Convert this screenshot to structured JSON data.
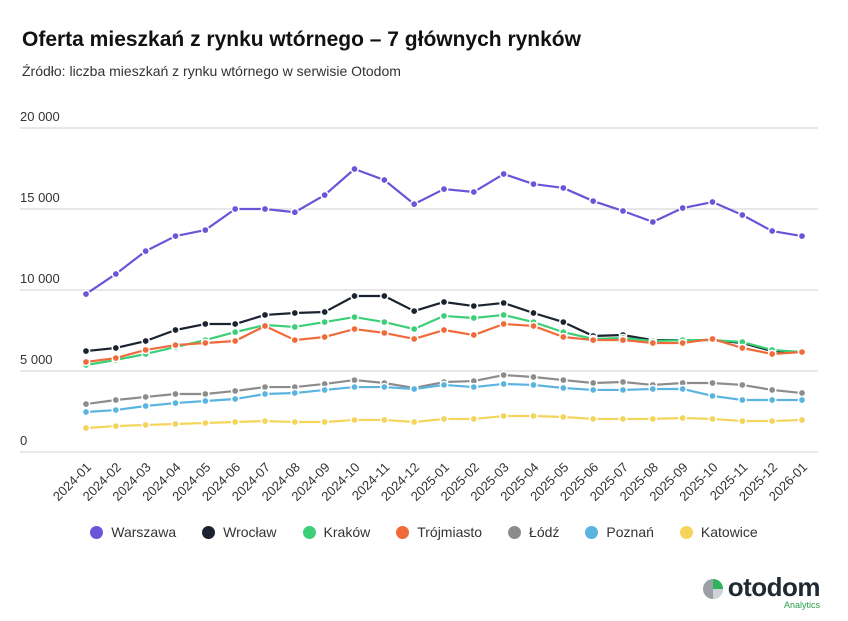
{
  "chart_data": {
    "type": "line",
    "title": "Oferta mieszkań z rynku wtórnego – 7 głównych rynków",
    "subtitle": "Źródło: liczba mieszkań z rynku wtórnego w serwisie Otodom",
    "xlabel": "",
    "ylabel": "",
    "ylim": [
      0,
      20000
    ],
    "yticks": [
      0,
      5000,
      10000,
      15000,
      20000
    ],
    "ytick_labels": [
      "0",
      "5 000",
      "10 000",
      "15 000",
      "20 000"
    ],
    "grid": true,
    "legend_position": "bottom",
    "categories": [
      "2024-01",
      "2024-02",
      "2024-03",
      "2024-04",
      "2024-05",
      "2024-06",
      "2024-07",
      "2024-08",
      "2024-09",
      "2024-10",
      "2024-11",
      "2024-12",
      "2025-01",
      "2025-02",
      "2025-03",
      "2025-04",
      "2025-05",
      "2025-06",
      "2025-07",
      "2025-08",
      "2025-09",
      "2025-10",
      "2025-11",
      "2025-12",
      "2026-01"
    ],
    "series": [
      {
        "name": "Warszawa",
        "color": "#6a55d8",
        "values": [
          9750,
          10990,
          12400,
          13330,
          13700,
          15000,
          15000,
          14800,
          15860,
          17470,
          16790,
          15300,
          16230,
          16050,
          17160,
          16540,
          16300,
          15490,
          14880,
          14200,
          15060,
          15430,
          14630,
          13640,
          13330
        ]
      },
      {
        "name": "Wrocław",
        "color": "#1b2330",
        "values": [
          6230,
          6420,
          6850,
          7530,
          7900,
          7900,
          8460,
          8580,
          8640,
          9630,
          9630,
          8700,
          9260,
          9010,
          9200,
          8580,
          8020,
          7160,
          7220,
          6910,
          6910,
          6910,
          6730,
          6230,
          6170
        ]
      },
      {
        "name": "Kraków",
        "color": "#3ccf78",
        "values": [
          5370,
          5680,
          6050,
          6480,
          6910,
          7400,
          7840,
          7720,
          8020,
          8330,
          8020,
          7590,
          8400,
          8270,
          8460,
          8020,
          7400,
          6980,
          7040,
          6850,
          6910,
          6910,
          6790,
          6300,
          6170
        ]
      },
      {
        "name": "Trójmiasto",
        "color": "#f06a3a",
        "values": [
          5560,
          5800,
          6300,
          6600,
          6730,
          6850,
          7780,
          6910,
          7100,
          7590,
          7350,
          6980,
          7530,
          7220,
          7900,
          7780,
          7100,
          6910,
          6910,
          6730,
          6730,
          6980,
          6420,
          6050,
          6170
        ]
      },
      {
        "name": "Łódź",
        "color": "#8c8c8c",
        "values": [
          2960,
          3210,
          3400,
          3580,
          3580,
          3770,
          4010,
          4010,
          4200,
          4440,
          4260,
          3950,
          4320,
          4380,
          4750,
          4630,
          4440,
          4260,
          4320,
          4140,
          4260,
          4260,
          4140,
          3830,
          3640
        ]
      },
      {
        "name": "Poznań",
        "color": "#5ab4e0",
        "values": [
          2470,
          2590,
          2840,
          3020,
          3150,
          3270,
          3580,
          3640,
          3830,
          4010,
          4010,
          3890,
          4140,
          4010,
          4200,
          4140,
          3950,
          3830,
          3830,
          3890,
          3890,
          3460,
          3210,
          3210,
          3210
        ]
      },
      {
        "name": "Katowice",
        "color": "#f5d45a",
        "values": [
          1480,
          1600,
          1670,
          1730,
          1790,
          1850,
          1910,
          1850,
          1850,
          1980,
          1980,
          1850,
          2040,
          2040,
          2220,
          2220,
          2160,
          2040,
          2040,
          2040,
          2100,
          2040,
          1910,
          1910,
          1980
        ]
      }
    ]
  },
  "logo": {
    "name": "otodom",
    "sub": "Analytics"
  }
}
